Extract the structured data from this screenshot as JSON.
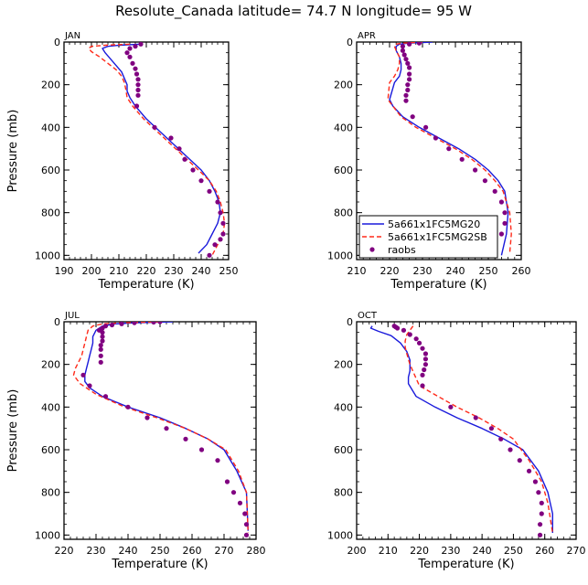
{
  "figure_title": "Resolute_Canada  latitude= 74.7 N longitude= 95 W",
  "colors": {
    "model1": "#1a1adb",
    "model2": "#ff2a1a",
    "raobs": "#800080",
    "axes": "#000000"
  },
  "chart_data": [
    {
      "type": "line",
      "panel": "JAN",
      "title": "JAN",
      "xlabel": "Temperature (K)",
      "ylabel": "Pressure (mb)",
      "xlim": [
        190,
        250
      ],
      "ylim": [
        1020,
        0
      ],
      "xticks": [
        190,
        200,
        210,
        220,
        230,
        240,
        250
      ],
      "yticks": [
        0,
        200,
        400,
        600,
        800,
        1000
      ],
      "legend": false,
      "series": [
        {
          "name": "5a661x1FC5MG20",
          "style": "solid",
          "color": "#1a1adb",
          "x": [
            218,
            210,
            206,
            204,
            205,
            207,
            209,
            211,
            212,
            213,
            213,
            214,
            216,
            220,
            225,
            230,
            235,
            240,
            243,
            245,
            246.5,
            247,
            246,
            244,
            242,
            239
          ],
          "y": [
            10,
            15,
            20,
            30,
            50,
            80,
            110,
            140,
            170,
            200,
            230,
            260,
            300,
            360,
            420,
            480,
            540,
            600,
            650,
            700,
            750,
            800,
            850,
            900,
            950,
            990
          ]
        },
        {
          "name": "5a661x1FC5MG2SB",
          "style": "dashed",
          "color": "#ff2a1a",
          "x": [
            214,
            205,
            200,
            199,
            200,
            203,
            206,
            209,
            211,
            212,
            212.5,
            213,
            215,
            219,
            224,
            229,
            234,
            239,
            243,
            245.5,
            247,
            248,
            248.5,
            248,
            246,
            244
          ],
          "y": [
            10,
            15,
            20,
            30,
            45,
            70,
            100,
            130,
            160,
            190,
            220,
            260,
            300,
            360,
            420,
            480,
            540,
            600,
            650,
            700,
            750,
            800,
            850,
            900,
            950,
            1000
          ]
        },
        {
          "name": "raobs",
          "style": "markers",
          "color": "#800080",
          "x": [
            218,
            216,
            214,
            213,
            214,
            215,
            216,
            216.5,
            217,
            217,
            217,
            217,
            216.5,
            223,
            229,
            232,
            234,
            237,
            240,
            243,
            246,
            247,
            248,
            248,
            247,
            245,
            243
          ],
          "y": [
            10,
            20,
            30,
            50,
            70,
            100,
            125,
            150,
            175,
            200,
            225,
            250,
            300,
            400,
            450,
            500,
            550,
            600,
            650,
            700,
            750,
            800,
            850,
            900,
            925,
            950,
            1000
          ]
        }
      ]
    },
    {
      "type": "line",
      "panel": "APR",
      "title": "APR",
      "xlabel": "Temperature (K)",
      "ylabel": "Pressure (mb)",
      "xlim": [
        210,
        260
      ],
      "ylim": [
        1020,
        0
      ],
      "xticks": [
        210,
        220,
        230,
        240,
        250,
        260
      ],
      "yticks": [
        0,
        200,
        400,
        600,
        800,
        1000
      ],
      "legend": true,
      "legend_location": "bottom-left",
      "series": [
        {
          "name": "5a661x1FC5MG20",
          "style": "solid",
          "color": "#1a1adb",
          "x": [
            233,
            226,
            223,
            222,
            222,
            223,
            223.5,
            223.5,
            223,
            221.5,
            220,
            221,
            224,
            229,
            235,
            241,
            246,
            250,
            253,
            255,
            256,
            255.5,
            254
          ],
          "y": [
            0,
            5,
            10,
            20,
            40,
            70,
            100,
            130,
            160,
            190,
            270,
            300,
            350,
            400,
            450,
            500,
            550,
            600,
            650,
            700,
            800,
            900,
            1000
          ]
        },
        {
          "name": "5a661x1FC5MG2SB",
          "style": "dashed",
          "color": "#ff2a1a",
          "x": [
            230,
            224,
            222,
            221.5,
            222,
            223,
            223,
            222.5,
            221.5,
            220,
            219.5,
            221,
            223.5,
            228,
            234,
            240,
            245,
            249,
            252,
            254.5,
            256.5,
            257,
            256.5
          ],
          "y": [
            0,
            5,
            10,
            20,
            40,
            70,
            100,
            130,
            160,
            190,
            270,
            300,
            350,
            400,
            450,
            500,
            550,
            600,
            650,
            700,
            800,
            900,
            990
          ]
        },
        {
          "name": "raobs",
          "style": "markers",
          "color": "#800080",
          "x": [
            229,
            226,
            224,
            224,
            224.5,
            225,
            225.5,
            226,
            226,
            226,
            225.5,
            225.5,
            225,
            225,
            227,
            231,
            234,
            238,
            242,
            246,
            249,
            252,
            254,
            255,
            255,
            254,
            252,
            250.5
          ],
          "y": [
            5,
            10,
            20,
            40,
            60,
            80,
            100,
            120,
            150,
            175,
            200,
            225,
            250,
            275,
            350,
            400,
            450,
            500,
            550,
            600,
            650,
            700,
            750,
            800,
            850,
            900,
            950,
            1000
          ]
        }
      ]
    },
    {
      "type": "line",
      "panel": "JUL",
      "title": "JUL",
      "xlabel": "Temperature (K)",
      "ylabel": "Pressure (mb)",
      "xlim": [
        220,
        280
      ],
      "ylim": [
        1020,
        0
      ],
      "xticks": [
        220,
        230,
        240,
        250,
        260,
        270,
        280
      ],
      "yticks": [
        0,
        200,
        400,
        600,
        800,
        1000
      ],
      "legend": false,
      "series": [
        {
          "name": "5a661x1FC5MG20",
          "style": "solid",
          "color": "#1a1adb",
          "x": [
            254,
            242,
            236,
            232,
            230,
            229,
            229,
            228.5,
            228,
            227.5,
            227,
            226.5,
            226.5,
            228,
            232,
            240,
            250,
            258,
            265,
            270,
            274,
            277,
            277.5
          ],
          "y": [
            0,
            5,
            10,
            20,
            40,
            70,
            100,
            130,
            160,
            190,
            220,
            250,
            280,
            310,
            350,
            400,
            450,
            500,
            550,
            600,
            700,
            800,
            980
          ]
        },
        {
          "name": "5a661x1FC5MG2SB",
          "style": "dashed",
          "color": "#ff2a1a",
          "x": [
            250,
            238,
            232,
            229,
            227.5,
            227,
            226.5,
            226,
            225.5,
            224.5,
            223.5,
            223,
            225,
            230,
            239,
            249,
            258,
            265,
            270.5,
            274.5,
            277,
            277.5
          ],
          "y": [
            0,
            5,
            10,
            20,
            40,
            70,
            100,
            130,
            160,
            190,
            220,
            250,
            290,
            340,
            400,
            450,
            500,
            550,
            600,
            700,
            800,
            990
          ]
        },
        {
          "name": "raobs",
          "style": "markers",
          "color": "#800080",
          "x": [
            250,
            248,
            242,
            238,
            235,
            233,
            232,
            231,
            232,
            232,
            232,
            231.5,
            231.5,
            231.5,
            231.5,
            226,
            228,
            233,
            240,
            246,
            252,
            258,
            263,
            268,
            271,
            273,
            275,
            276.5,
            277,
            277
          ],
          "y": [
            0,
            2,
            5,
            10,
            15,
            20,
            30,
            40,
            50,
            70,
            90,
            110,
            130,
            160,
            190,
            250,
            300,
            350,
            400,
            450,
            500,
            550,
            600,
            650,
            750,
            800,
            850,
            900,
            950,
            1000
          ]
        }
      ]
    },
    {
      "type": "line",
      "panel": "OCT",
      "title": "OCT",
      "xlabel": "Temperature (K)",
      "ylabel": "Pressure (mb)",
      "xlim": [
        200,
        270
      ],
      "ylim": [
        1020,
        0
      ],
      "xticks": [
        200,
        210,
        220,
        230,
        240,
        250,
        260,
        270
      ],
      "yticks": [
        0,
        200,
        400,
        600,
        800,
        1000
      ],
      "legend": false,
      "series": [
        {
          "name": "5a661x1FC5MG20",
          "style": "solid",
          "color": "#1a1adb",
          "x": [
            205,
            204.5,
            207,
            211,
            214,
            216,
            217,
            217,
            216.5,
            216.5,
            219,
            225,
            232,
            240,
            247,
            253,
            258,
            261,
            262.5,
            262.5
          ],
          "y": [
            20,
            30,
            45,
            65,
            100,
            140,
            180,
            230,
            260,
            290,
            350,
            400,
            450,
            500,
            550,
            600,
            700,
            800,
            900,
            990
          ]
        },
        {
          "name": "5a661x1FC5MG2SB",
          "style": "dashed",
          "color": "#ff2a1a",
          "x": [
            218,
            217,
            216,
            215.5,
            215.5,
            216,
            217,
            218.5,
            220,
            226,
            232,
            239,
            245,
            250,
            255,
            259,
            261,
            262.5
          ],
          "y": [
            20,
            40,
            60,
            90,
            120,
            150,
            200,
            250,
            300,
            350,
            400,
            450,
            500,
            550,
            650,
            750,
            850,
            990
          ]
        },
        {
          "name": "raobs",
          "style": "markers",
          "color": "#800080",
          "x": [
            212,
            212.5,
            213,
            215,
            217,
            219,
            220,
            221,
            222,
            222,
            222,
            221.5,
            221,
            221,
            230,
            238,
            243,
            246,
            249,
            252,
            255,
            257,
            258,
            259,
            259,
            258.5,
            258.5
          ],
          "y": [
            20,
            25,
            30,
            40,
            60,
            80,
            100,
            125,
            150,
            175,
            200,
            225,
            250,
            300,
            400,
            450,
            500,
            550,
            600,
            650,
            700,
            750,
            800,
            850,
            900,
            950,
            1000
          ]
        }
      ]
    }
  ]
}
